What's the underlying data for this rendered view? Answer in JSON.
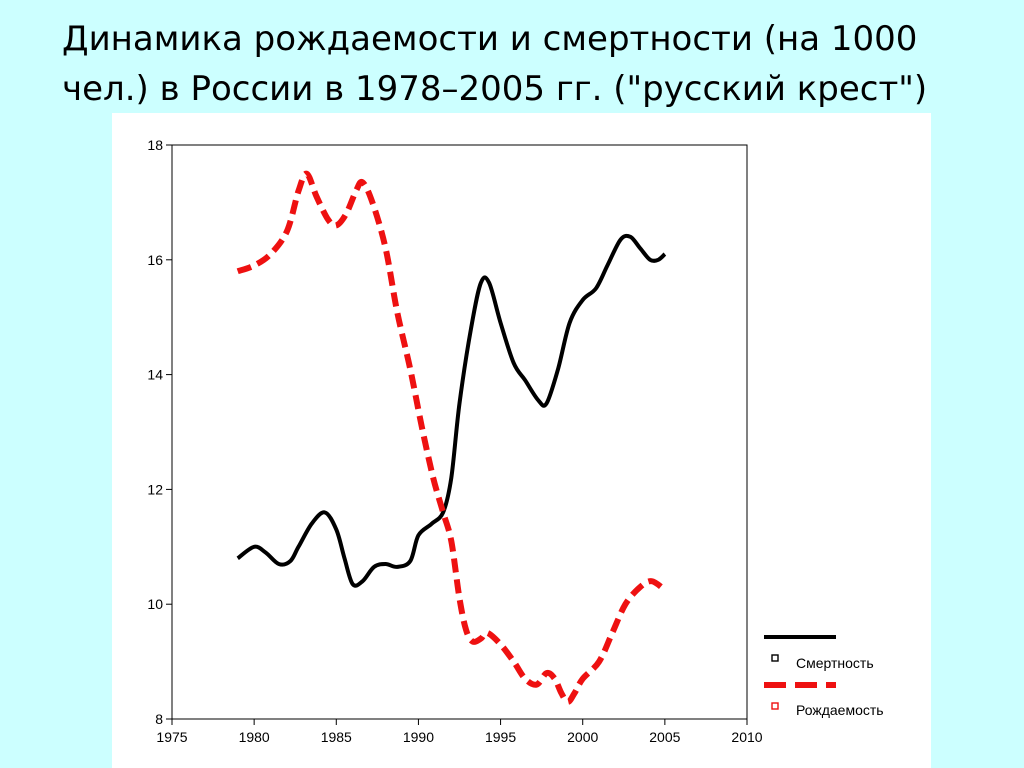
{
  "slide": {
    "title": "Динамика рождаемости и смертности (на 1000 чел.) в России в 1978–2005 гг. (\"русский крест\")"
  },
  "colors": {
    "background": "#ccffff",
    "panel": "#ffffff",
    "mortality": "#000000",
    "birth": "#ee1111"
  },
  "chart_data": {
    "type": "line",
    "title": "",
    "xlabel": "",
    "ylabel": "",
    "xlim": [
      1975,
      2010
    ],
    "ylim": [
      8,
      18
    ],
    "xticks": [
      1975,
      1980,
      1985,
      1990,
      1995,
      2000,
      2005,
      2010
    ],
    "yticks": [
      8,
      10,
      12,
      14,
      16,
      18
    ],
    "grid": false,
    "legend": "bottom-right",
    "series": [
      {
        "name": "Смертность",
        "style": "solid",
        "color": "#000000",
        "points": [
          [
            1979,
            10.8
          ],
          [
            1980,
            11.0
          ],
          [
            1980.7,
            10.9
          ],
          [
            1981.5,
            10.7
          ],
          [
            1982.2,
            10.75
          ],
          [
            1982.7,
            11.0
          ],
          [
            1983.5,
            11.4
          ],
          [
            1984.3,
            11.6
          ],
          [
            1985,
            11.3
          ],
          [
            1985.5,
            10.8
          ],
          [
            1986,
            10.35
          ],
          [
            1986.6,
            10.4
          ],
          [
            1987.3,
            10.65
          ],
          [
            1988,
            10.7
          ],
          [
            1988.7,
            10.65
          ],
          [
            1989.5,
            10.75
          ],
          [
            1990,
            11.2
          ],
          [
            1990.8,
            11.4
          ],
          [
            1991.5,
            11.6
          ],
          [
            1992,
            12.2
          ],
          [
            1992.5,
            13.5
          ],
          [
            1993.2,
            14.8
          ],
          [
            1993.8,
            15.6
          ],
          [
            1994.3,
            15.6
          ],
          [
            1995,
            14.9
          ],
          [
            1995.8,
            14.2
          ],
          [
            1996.5,
            13.9
          ],
          [
            1997.3,
            13.55
          ],
          [
            1997.8,
            13.5
          ],
          [
            1998.5,
            14.1
          ],
          [
            1999.2,
            14.9
          ],
          [
            2000,
            15.3
          ],
          [
            2000.8,
            15.5
          ],
          [
            2001.5,
            15.9
          ],
          [
            2002.3,
            16.35
          ],
          [
            2002.9,
            16.4
          ],
          [
            2003.5,
            16.2
          ],
          [
            2004.1,
            16.0
          ],
          [
            2004.6,
            16.0
          ],
          [
            2005,
            16.1
          ]
        ]
      },
      {
        "name": "Рождаемость",
        "style": "dashed",
        "color": "#ee1111",
        "points": [
          [
            1979,
            15.8
          ],
          [
            1980,
            15.9
          ],
          [
            1981,
            16.1
          ],
          [
            1982,
            16.5
          ],
          [
            1982.7,
            17.2
          ],
          [
            1983.2,
            17.5
          ],
          [
            1983.8,
            17.1
          ],
          [
            1984.5,
            16.7
          ],
          [
            1985,
            16.6
          ],
          [
            1985.6,
            16.8
          ],
          [
            1986.2,
            17.2
          ],
          [
            1986.6,
            17.35
          ],
          [
            1987.2,
            17.0
          ],
          [
            1988,
            16.2
          ],
          [
            1988.7,
            15.1
          ],
          [
            1989.5,
            14.1
          ],
          [
            1990.2,
            13.1
          ],
          [
            1990.9,
            12.2
          ],
          [
            1991.5,
            11.6
          ],
          [
            1992,
            11.1
          ],
          [
            1992.5,
            10.1
          ],
          [
            1992.9,
            9.55
          ],
          [
            1993.3,
            9.35
          ],
          [
            1993.8,
            9.4
          ],
          [
            1994.2,
            9.5
          ],
          [
            1995,
            9.3
          ],
          [
            1995.8,
            9.0
          ],
          [
            1996.5,
            8.7
          ],
          [
            1997.2,
            8.6
          ],
          [
            1997.8,
            8.8
          ],
          [
            1998.3,
            8.7
          ],
          [
            1998.7,
            8.45
          ],
          [
            1999.1,
            8.3
          ],
          [
            1999.5,
            8.45
          ],
          [
            2000,
            8.7
          ],
          [
            2001,
            9.0
          ],
          [
            2001.8,
            9.5
          ],
          [
            2002.6,
            10.0
          ],
          [
            2003.5,
            10.3
          ],
          [
            2004.2,
            10.4
          ],
          [
            2005,
            10.25
          ]
        ]
      }
    ]
  }
}
